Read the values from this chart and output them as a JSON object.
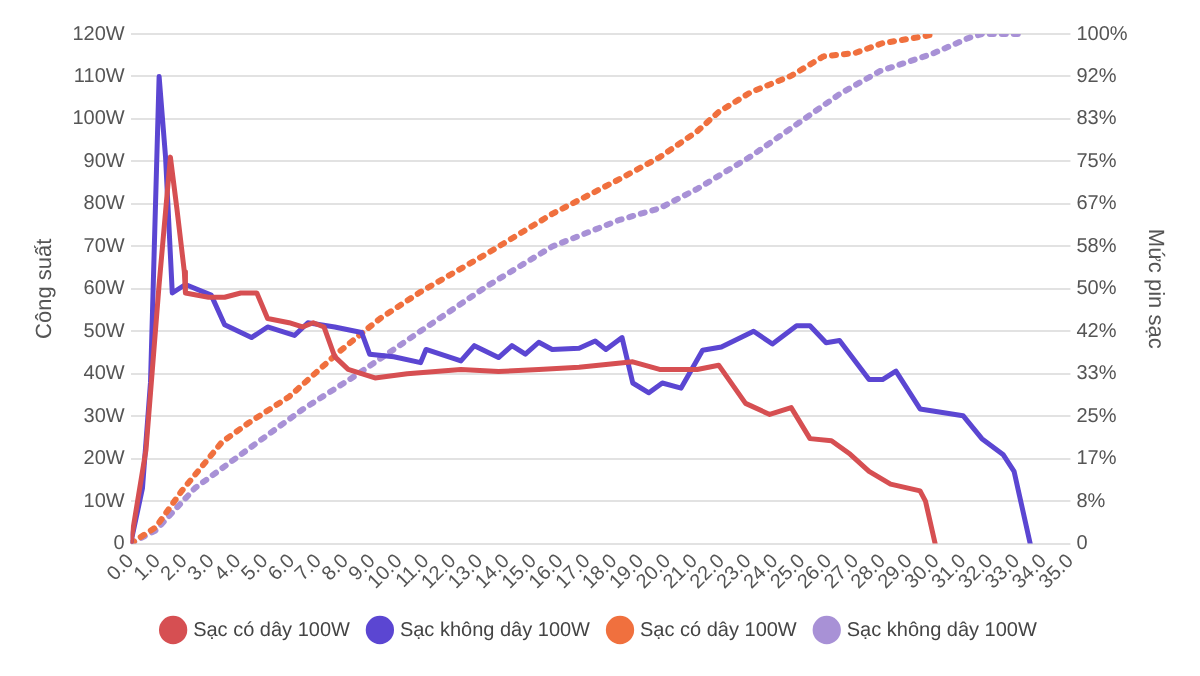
{
  "chart_data": {
    "type": "line",
    "ylabel": "Công suất",
    "y2label": "Mức pin sạc",
    "xlim": [
      0,
      35
    ],
    "xticks": [
      {
        "value": 0,
        "label": "0.0"
      },
      {
        "value": 1,
        "label": "1.0"
      },
      {
        "value": 2,
        "label": "2.0"
      },
      {
        "value": 3,
        "label": "3.0"
      },
      {
        "value": 4,
        "label": "4.0"
      },
      {
        "value": 5,
        "label": "5.0"
      },
      {
        "value": 6,
        "label": "6.0"
      },
      {
        "value": 7,
        "label": "7.0"
      },
      {
        "value": 8,
        "label": "8.0"
      },
      {
        "value": 9,
        "label": "9.0"
      },
      {
        "value": 10,
        "label": "10.0"
      },
      {
        "value": 11,
        "label": "11.0"
      },
      {
        "value": 12,
        "label": "12.0"
      },
      {
        "value": 13,
        "label": "13.0"
      },
      {
        "value": 14,
        "label": "14.0"
      },
      {
        "value": 15,
        "label": "15.0"
      },
      {
        "value": 16,
        "label": "16.0"
      },
      {
        "value": 17,
        "label": "17.0"
      },
      {
        "value": 18,
        "label": "18.0"
      },
      {
        "value": 19,
        "label": "19.0"
      },
      {
        "value": 20,
        "label": "20.0"
      },
      {
        "value": 21,
        "label": "21.0"
      },
      {
        "value": 22,
        "label": "22.0"
      },
      {
        "value": 23,
        "label": "23.0"
      },
      {
        "value": 24,
        "label": "24.0"
      },
      {
        "value": 25,
        "label": "25.0"
      },
      {
        "value": 26,
        "label": "26.0"
      },
      {
        "value": 27,
        "label": "27.0"
      },
      {
        "value": 28,
        "label": "28.0"
      },
      {
        "value": 29,
        "label": "29.0"
      },
      {
        "value": 30,
        "label": "30.0"
      },
      {
        "value": 31,
        "label": "31.0"
      },
      {
        "value": 32,
        "label": "32.0"
      },
      {
        "value": 33,
        "label": "33.0"
      },
      {
        "value": 34,
        "label": "34.0"
      },
      {
        "value": 35,
        "label": "35.0"
      }
    ],
    "ylim": [
      0,
      120
    ],
    "yticks": [
      0,
      {
        "value": 10,
        "label": "10W"
      },
      {
        "value": 20,
        "label": "20W"
      },
      {
        "value": 30,
        "label": "30W"
      },
      {
        "value": 40,
        "label": "40W"
      },
      {
        "value": 50,
        "label": "50W"
      },
      {
        "value": 60,
        "label": "60W"
      },
      {
        "value": 70,
        "label": "70W"
      },
      {
        "value": 80,
        "label": "80W"
      },
      {
        "value": 90,
        "label": "90W"
      },
      {
        "value": 100,
        "label": "100W"
      },
      {
        "value": 110,
        "label": "110W"
      },
      {
        "value": 120,
        "label": "120W"
      }
    ],
    "y2lim": [
      0,
      100
    ],
    "y2ticks": [
      0,
      {
        "value": 8.33,
        "label": "8%"
      },
      {
        "value": 16.67,
        "label": "17%"
      },
      {
        "value": 25,
        "label": "25%"
      },
      {
        "value": 33.33,
        "label": "33%"
      },
      {
        "value": 41.67,
        "label": "42%"
      },
      {
        "value": 50,
        "label": "50%"
      },
      {
        "value": 58.33,
        "label": "58%"
      },
      {
        "value": 66.67,
        "label": "67%"
      },
      {
        "value": 75,
        "label": "75%"
      },
      {
        "value": 83.33,
        "label": "83%"
      },
      {
        "value": 91.67,
        "label": "92%"
      },
      {
        "value": 100,
        "label": "100%"
      }
    ],
    "grid": "y",
    "legend": "bottom",
    "marker": "none",
    "series": [
      {
        "name": "Sạc có dây 100W",
        "color": "#d64f52",
        "line_style": "solid",
        "x": [
          0,
          0.57,
          1.06,
          1.48,
          1.72,
          2.0,
          2.04,
          2.9,
          3.5,
          4.1,
          4.7,
          5.1,
          5.9,
          6.4,
          6.8,
          7.2,
          7.6,
          8.1,
          9.1,
          10.3,
          12.3,
          13.7,
          15.2,
          16.7,
          18.7,
          19.7,
          21.1,
          21.9,
          22.9,
          23.8,
          24.6,
          25.3,
          26.1,
          26.8,
          27.5,
          28.3,
          29.4,
          29.6,
          29.96
        ],
        "values": [
          0,
          22,
          61,
          91,
          79,
          64,
          59,
          58,
          58,
          59,
          59,
          53,
          52,
          51,
          52,
          51,
          44,
          41,
          39,
          40,
          41,
          40.5,
          41,
          41.5,
          42.8,
          41,
          41,
          42,
          33,
          30.4,
          32,
          24.7,
          24.2,
          21,
          17,
          14,
          12.4,
          10,
          0
        ]
      },
      {
        "name": "Sạc không dây 100W",
        "color": "#5b46d2",
        "line_style": "solid",
        "x": [
          0,
          0.44,
          0.74,
          1.06,
          1.3,
          1.55,
          2.04,
          3.0,
          3.5,
          4.5,
          5.1,
          6.1,
          6.6,
          7.6,
          8.6,
          8.9,
          9.8,
          10.8,
          11.0,
          12.3,
          12.8,
          13.7,
          14.2,
          14.7,
          15.2,
          15.7,
          16.7,
          17.3,
          17.7,
          18.3,
          18.7,
          19.3,
          19.8,
          20.5,
          21.3,
          22.0,
          23.2,
          23.9,
          24.8,
          25.3,
          25.9,
          26.4,
          27.5,
          28.0,
          28.5,
          29.4,
          31.0,
          31.7,
          32.5,
          32.9,
          33.5
        ],
        "values": [
          0,
          13,
          38,
          110,
          91,
          59,
          61,
          58.5,
          51.5,
          48.5,
          51,
          49,
          52,
          51,
          49.7,
          44.6,
          44,
          42.6,
          45.7,
          43,
          46.6,
          43.8,
          46.6,
          44.6,
          47.4,
          45.7,
          46,
          47.7,
          45.7,
          48.5,
          37.8,
          35.5,
          37.8,
          36.6,
          45.5,
          46.3,
          50,
          47,
          51.3,
          51.3,
          47.3,
          47.8,
          38.6,
          38.6,
          40.6,
          31.7,
          30.1,
          24.7,
          20.9,
          17,
          0
        ]
      },
      {
        "name": "Sạc có dây 100W",
        "color": "#f0703e",
        "line_style": "dotted",
        "axis": "y2",
        "x": [
          0,
          0.94,
          1.9,
          3.4,
          4.4,
          5.9,
          7.8,
          9.3,
          10.8,
          13.3,
          15.7,
          18.2,
          19.7,
          21.1,
          21.9,
          23.1,
          24.6,
          25.8,
          27.0,
          28.0,
          29.5,
          29.96
        ],
        "values": [
          0,
          3.2,
          10.3,
          19.9,
          23.7,
          28.8,
          37.8,
          44.2,
          49.4,
          57,
          64.7,
          71.5,
          75.8,
          80.9,
          84.7,
          88.6,
          91.8,
          95.6,
          96.3,
          98.2,
          99.5,
          100
        ]
      },
      {
        "name": "Sạc không dây 100W",
        "color": "#a891d6",
        "line_style": "dotted",
        "axis": "y2",
        "x": [
          0,
          0.94,
          2.4,
          4.4,
          6.4,
          8.3,
          10.8,
          13.3,
          15.7,
          18.2,
          19.7,
          21.1,
          23.1,
          25.0,
          26.4,
          27.9,
          29.8,
          31.2,
          31.7,
          33.2
        ],
        "values": [
          0,
          2.6,
          10.9,
          18.6,
          26.3,
          32.7,
          41.7,
          50.6,
          58.3,
          63.5,
          65.8,
          69.6,
          76,
          83,
          88.2,
          92.7,
          96,
          99.2,
          100,
          100
        ]
      }
    ]
  }
}
